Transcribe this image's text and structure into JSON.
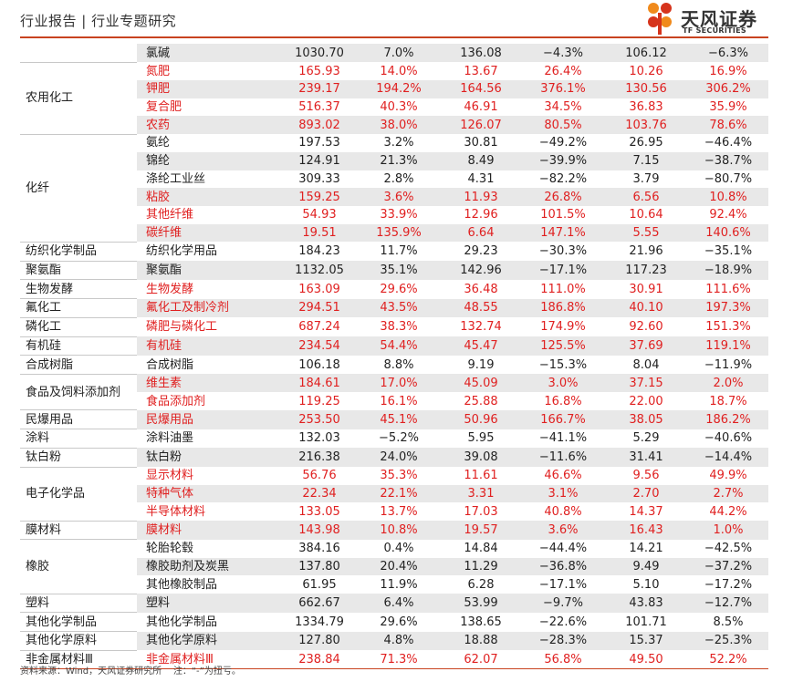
{
  "header": {
    "title": "行业报告 | 行业专题研究",
    "logo_cn": "天风证券",
    "logo_en": "TF SECURITIES",
    "accent_color": "#c8431f",
    "logo_orange": "#f08a1c",
    "logo_red": "#d6341c"
  },
  "table": {
    "highlight_color": "#e02020",
    "groups": [
      {
        "category": "",
        "rows": [
          {
            "sub": "氯碱",
            "v": [
              "1030.70",
              "7.0%",
              "136.08",
              "−4.3%",
              "106.12",
              "−6.3%"
            ],
            "red": false
          }
        ]
      },
      {
        "category": "农用化工",
        "rows": [
          {
            "sub": "氮肥",
            "v": [
              "165.93",
              "14.0%",
              "13.67",
              "26.4%",
              "10.26",
              "16.9%"
            ],
            "red": true
          },
          {
            "sub": "钾肥",
            "v": [
              "239.17",
              "194.2%",
              "164.56",
              "376.1%",
              "130.56",
              "306.2%"
            ],
            "red": true
          },
          {
            "sub": "复合肥",
            "v": [
              "516.37",
              "40.3%",
              "46.91",
              "34.5%",
              "36.83",
              "35.9%"
            ],
            "red": true
          },
          {
            "sub": "农药",
            "v": [
              "893.02",
              "38.0%",
              "126.07",
              "80.5%",
              "103.76",
              "78.6%"
            ],
            "red": true
          }
        ]
      },
      {
        "category": "化纤",
        "rows": [
          {
            "sub": "氨纶",
            "v": [
              "197.53",
              "3.2%",
              "30.81",
              "−49.2%",
              "26.95",
              "−46.4%"
            ],
            "red": false
          },
          {
            "sub": "锦纶",
            "v": [
              "124.91",
              "21.3%",
              "8.49",
              "−39.9%",
              "7.15",
              "−38.7%"
            ],
            "red": false
          },
          {
            "sub": "涤纶工业丝",
            "v": [
              "309.33",
              "2.8%",
              "4.31",
              "−82.2%",
              "3.79",
              "−80.7%"
            ],
            "red": false
          },
          {
            "sub": "粘胶",
            "v": [
              "159.25",
              "3.6%",
              "11.93",
              "26.8%",
              "6.56",
              "10.8%"
            ],
            "red": true
          },
          {
            "sub": "其他纤维",
            "v": [
              "54.93",
              "33.9%",
              "12.96",
              "101.5%",
              "10.64",
              "92.4%"
            ],
            "red": true
          },
          {
            "sub": "碳纤维",
            "v": [
              "19.51",
              "135.9%",
              "6.64",
              "147.1%",
              "5.55",
              "140.6%"
            ],
            "red": true
          }
        ]
      },
      {
        "category": "纺织化学制品",
        "rows": [
          {
            "sub": "纺织化学用品",
            "v": [
              "184.23",
              "11.7%",
              "29.23",
              "−30.3%",
              "21.96",
              "−35.1%"
            ],
            "red": false
          }
        ]
      },
      {
        "category": "聚氨酯",
        "rows": [
          {
            "sub": "聚氨酯",
            "v": [
              "1132.05",
              "35.1%",
              "142.96",
              "−17.1%",
              "117.23",
              "−18.9%"
            ],
            "red": false
          }
        ]
      },
      {
        "category": "生物发酵",
        "rows": [
          {
            "sub": "生物发酵",
            "v": [
              "163.09",
              "29.6%",
              "36.48",
              "111.0%",
              "30.91",
              "111.6%"
            ],
            "red": true
          }
        ]
      },
      {
        "category": "氟化工",
        "rows": [
          {
            "sub": "氟化工及制冷剂",
            "v": [
              "294.51",
              "43.5%",
              "48.55",
              "186.8%",
              "40.10",
              "197.3%"
            ],
            "red": true
          }
        ]
      },
      {
        "category": "磷化工",
        "rows": [
          {
            "sub": "磷肥与磷化工",
            "v": [
              "687.24",
              "38.3%",
              "132.74",
              "174.9%",
              "92.60",
              "151.3%"
            ],
            "red": true
          }
        ]
      },
      {
        "category": "有机硅",
        "rows": [
          {
            "sub": "有机硅",
            "v": [
              "234.54",
              "54.4%",
              "45.47",
              "125.5%",
              "37.69",
              "119.1%"
            ],
            "red": true
          }
        ]
      },
      {
        "category": "合成树脂",
        "rows": [
          {
            "sub": "合成树脂",
            "v": [
              "106.18",
              "8.8%",
              "9.19",
              "−15.3%",
              "8.04",
              "−11.9%"
            ],
            "red": false
          }
        ]
      },
      {
        "category": "食品及饲料添加剂",
        "rows": [
          {
            "sub": "维生素",
            "v": [
              "184.61",
              "17.0%",
              "45.09",
              "3.0%",
              "37.15",
              "2.0%"
            ],
            "red": true
          },
          {
            "sub": "食品添加剂",
            "v": [
              "119.25",
              "16.1%",
              "25.88",
              "16.8%",
              "22.00",
              "18.7%"
            ],
            "red": true
          }
        ]
      },
      {
        "category": "民爆用品",
        "rows": [
          {
            "sub": "民爆用品",
            "v": [
              "253.50",
              "45.1%",
              "50.96",
              "166.7%",
              "38.05",
              "186.2%"
            ],
            "red": true
          }
        ]
      },
      {
        "category": "涂料",
        "rows": [
          {
            "sub": "涂料油墨",
            "v": [
              "132.03",
              "−5.2%",
              "5.95",
              "−41.1%",
              "5.29",
              "−40.6%"
            ],
            "red": false
          }
        ]
      },
      {
        "category": "钛白粉",
        "rows": [
          {
            "sub": "钛白粉",
            "v": [
              "216.38",
              "24.0%",
              "39.08",
              "−11.6%",
              "31.41",
              "−14.4%"
            ],
            "red": false
          }
        ]
      },
      {
        "category": "电子化学品",
        "rows": [
          {
            "sub": "显示材料",
            "v": [
              "56.76",
              "35.3%",
              "11.61",
              "46.6%",
              "9.56",
              "49.9%"
            ],
            "red": true
          },
          {
            "sub": "特种气体",
            "v": [
              "22.34",
              "22.1%",
              "3.31",
              "3.1%",
              "2.70",
              "2.7%"
            ],
            "red": true
          },
          {
            "sub": "半导体材料",
            "v": [
              "133.05",
              "13.7%",
              "17.03",
              "40.8%",
              "14.37",
              "44.2%"
            ],
            "red": true
          }
        ]
      },
      {
        "category": "膜材料",
        "rows": [
          {
            "sub": "膜材料",
            "v": [
              "143.98",
              "10.8%",
              "19.57",
              "3.6%",
              "16.43",
              "1.0%"
            ],
            "red": true
          }
        ]
      },
      {
        "category": "橡胶",
        "rows": [
          {
            "sub": "轮胎轮毂",
            "v": [
              "384.16",
              "0.4%",
              "14.84",
              "−44.4%",
              "14.21",
              "−42.5%"
            ],
            "red": false
          },
          {
            "sub": "橡胶助剂及炭黑",
            "v": [
              "137.80",
              "20.4%",
              "11.29",
              "−36.8%",
              "9.49",
              "−37.2%"
            ],
            "red": false
          },
          {
            "sub": "其他橡胶制品",
            "v": [
              "61.95",
              "11.9%",
              "6.28",
              "−17.1%",
              "5.10",
              "−17.2%"
            ],
            "red": false
          }
        ]
      },
      {
        "category": "塑料",
        "rows": [
          {
            "sub": "塑料",
            "v": [
              "662.67",
              "6.4%",
              "53.99",
              "−9.7%",
              "43.83",
              "−12.7%"
            ],
            "red": false
          }
        ]
      },
      {
        "category": "其他化学制品",
        "rows": [
          {
            "sub": "其他化学制品",
            "v": [
              "1334.79",
              "29.6%",
              "138.65",
              "−22.6%",
              "101.71",
              "8.5%"
            ],
            "red": false
          }
        ]
      },
      {
        "category": "其他化学原料",
        "rows": [
          {
            "sub": "其他化学原料",
            "v": [
              "127.80",
              "4.8%",
              "18.88",
              "−28.3%",
              "15.37",
              "−25.3%"
            ],
            "red": false
          }
        ]
      },
      {
        "category": "非金属材料Ⅲ",
        "rows": [
          {
            "sub": "非金属材料Ⅲ",
            "v": [
              "238.84",
              "71.3%",
              "62.07",
              "56.8%",
              "49.50",
              "52.2%"
            ],
            "red": true
          }
        ]
      }
    ]
  },
  "footnote": "资料来源：Wind，天风证券研究所    注：“-”为扭亏。"
}
